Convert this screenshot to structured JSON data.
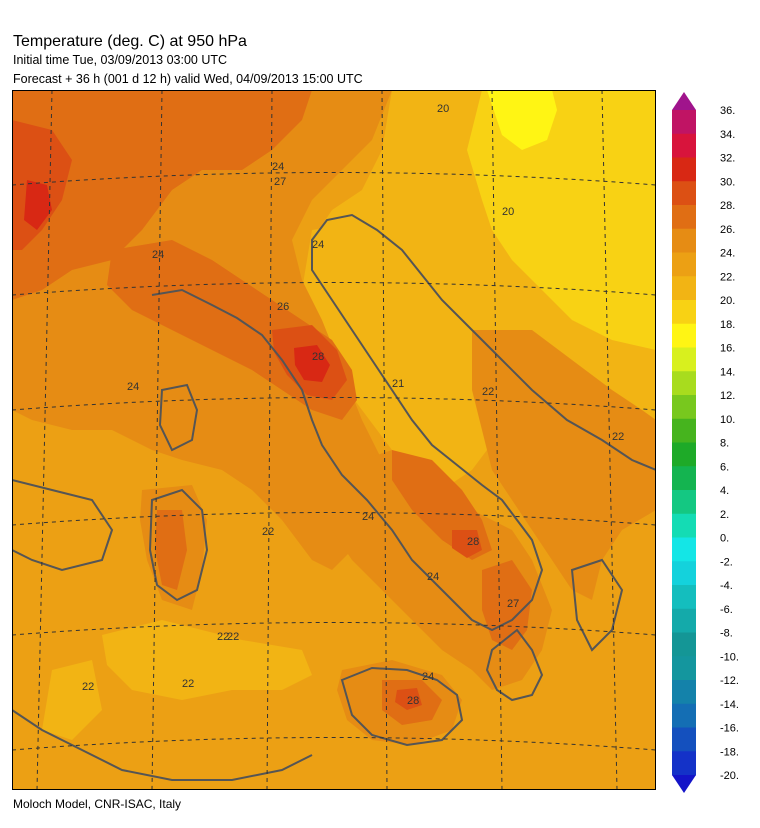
{
  "header": {
    "title": "Temperature (deg. C) at 950 hPa",
    "initial_time": "Initial time  Tue, 03/09/2013  03:00 UTC",
    "forecast": "Forecast  +  36 h  (001 d 12 h)  valid Wed, 04/09/2013 15:00 UTC"
  },
  "footer": {
    "credit": "Moloch Model, CNR-ISAC, Italy"
  },
  "colorbar": {
    "levels": [
      "36.",
      "34.",
      "32.",
      "30.",
      "28.",
      "26.",
      "24.",
      "22.",
      "20.",
      "18.",
      "16.",
      "14.",
      "12.",
      "10.",
      "8.",
      "6.",
      "4.",
      "2.",
      "0.",
      "-2.",
      "-4.",
      "-6.",
      "-8.",
      "-10.",
      "-12.",
      "-14.",
      "-16.",
      "-18.",
      "-20."
    ],
    "colors": [
      "#a0148c",
      "#c01464",
      "#d8143c",
      "#d82814",
      "#dc5014",
      "#e06e14",
      "#e68c14",
      "#eca014",
      "#f2b414",
      "#f8d214",
      "#fff514",
      "#d8f01e",
      "#a8dc1e",
      "#78c81e",
      "#46b41e",
      "#1eaa28",
      "#14b450",
      "#14c882",
      "#14dcb4",
      "#14e6e6",
      "#14d2dc",
      "#14bebe",
      "#14aaaa",
      "#149696",
      "#14969e",
      "#1482aa",
      "#146eb4",
      "#1450be",
      "#1432c8",
      "#1414c8"
    ]
  },
  "map": {
    "contour_labels": [
      "20",
      "20",
      "24",
      "27",
      "24",
      "24",
      "26",
      "28",
      "24",
      "21",
      "22",
      "22",
      "24",
      "22",
      "22",
      "24",
      "28",
      "24",
      "27",
      "22",
      "22",
      "22",
      "28"
    ]
  }
}
